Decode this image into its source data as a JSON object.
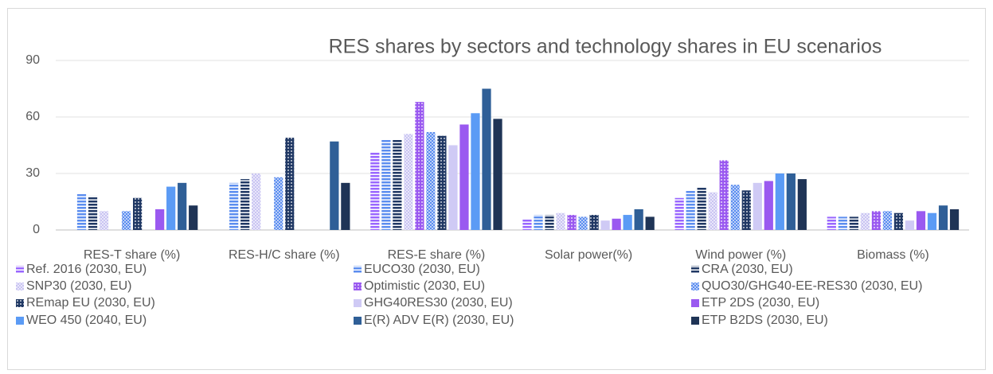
{
  "chart_data": {
    "type": "bar",
    "title": "RES shares by sectors and technology shares in EU scenarios",
    "categories": [
      "RES-T share (%)",
      "RES-H/C share (%)",
      "RES-E share (%)",
      "Solar power(%)",
      "Wind power (%)",
      "Biomass (%)"
    ],
    "ylim": [
      0,
      90
    ],
    "yticks": [
      0,
      30,
      60,
      90
    ],
    "grid": true,
    "legend": "bottom",
    "series": [
      {
        "name": "Ref. 2016  (2030, EU)",
        "color": "#9966ff",
        "pattern": "hlines",
        "values": [
          null,
          null,
          41,
          6,
          17,
          7
        ]
      },
      {
        "name": "EUCO30  (2030, EU)",
        "color": "#5b8def",
        "pattern": "hlines",
        "values": [
          19,
          25,
          48,
          8,
          21,
          7
        ]
      },
      {
        "name": "CRA  (2030, EU)",
        "color": "#203864",
        "pattern": "hlines",
        "values": [
          18,
          27,
          48,
          8,
          23,
          7
        ]
      },
      {
        "name": "SNP30  (2030, EU)",
        "color": "#c9c4f2",
        "pattern": "checker",
        "values": [
          10,
          30,
          51,
          9,
          20,
          9
        ]
      },
      {
        "name": "Optimistic (2030, EU)",
        "color": "#9a59f0",
        "pattern": "dots",
        "values": [
          null,
          null,
          68,
          8,
          37,
          10
        ]
      },
      {
        "name": "QUO30/GHG40-EE-RES30 (2030, EU)",
        "color": "#5b8def",
        "pattern": "checker",
        "values": [
          10,
          28,
          52,
          7,
          24,
          10
        ]
      },
      {
        "name": "REmap EU (2030, EU)",
        "color": "#203864",
        "pattern": "dots",
        "values": [
          17,
          49,
          50,
          8,
          21,
          9
        ]
      },
      {
        "name": "GHG40RES30  (2030, EU)",
        "color": "#cfcaf5",
        "pattern": null,
        "values": [
          null,
          null,
          45,
          5,
          25,
          5
        ]
      },
      {
        "name": "ETP 2DS (2030, EU)",
        "color": "#9a59f0",
        "pattern": null,
        "values": [
          11,
          null,
          56,
          6,
          26,
          10
        ]
      },
      {
        "name": "WEO 450 (2040, EU)",
        "color": "#5b9bf5",
        "pattern": null,
        "values": [
          23,
          null,
          62,
          8,
          30,
          9
        ]
      },
      {
        "name": "E(R) ADV E(R) (2030, EU)",
        "color": "#2f5f97",
        "pattern": null,
        "values": [
          25,
          47,
          75,
          11,
          30,
          13
        ]
      },
      {
        "name": "ETP B2DS (2030, EU)",
        "color": "#1f3456",
        "pattern": null,
        "values": [
          13,
          25,
          59,
          7,
          27,
          11
        ]
      }
    ]
  }
}
